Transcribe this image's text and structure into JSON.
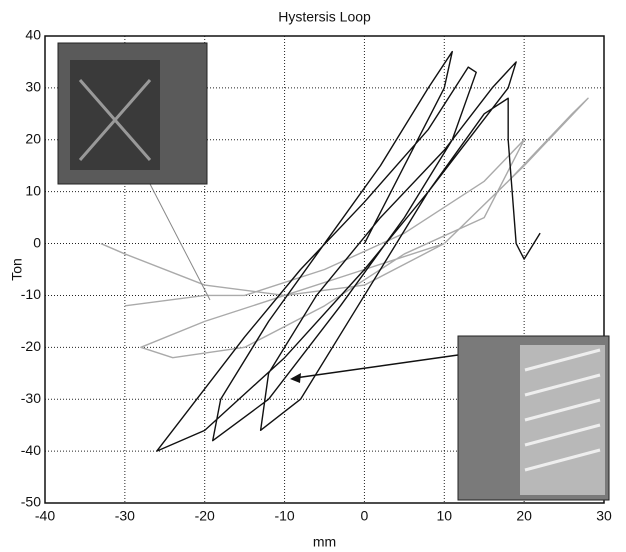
{
  "chart_data": {
    "type": "line",
    "title": "Hystersis Loop",
    "xlabel": "mm",
    "ylabel": "Ton",
    "xlim": [
      -40,
      30
    ],
    "xticks": [
      -40,
      -30,
      -20,
      -10,
      0,
      10,
      20,
      30
    ],
    "ylim": [
      -50,
      40
    ],
    "yticks": [
      -50,
      -40,
      -30,
      -20,
      -10,
      0,
      10,
      20,
      30,
      40
    ],
    "grid": true,
    "series": [
      {
        "color": "#aaaaaa",
        "x": [
          -33,
          -30,
          -20,
          -10,
          0,
          10,
          20,
          28,
          26,
          18,
          10,
          0,
          -10,
          -20,
          -28,
          -24,
          -15,
          -5,
          5,
          15,
          20,
          15,
          5,
          -5,
          -15,
          -20,
          -30
        ],
        "values": [
          0,
          -2,
          -8,
          -10,
          -8,
          0,
          15,
          28,
          25,
          12,
          0,
          -5,
          -10,
          -15,
          -20,
          -22,
          -20,
          -12,
          -2,
          5,
          20,
          12,
          2,
          -5,
          -10,
          -10,
          -12
        ]
      },
      {
        "color": "#111111",
        "x": [
          0,
          5,
          10,
          11,
          8,
          2,
          -5,
          -12,
          -18,
          -19,
          -12,
          -3,
          5,
          11,
          14,
          13,
          8,
          0,
          -8,
          -15,
          -22,
          -26,
          -20,
          -10,
          0,
          8,
          14,
          18,
          19,
          16,
          10,
          2,
          -6,
          -12,
          -13,
          -8,
          0,
          8,
          15,
          18,
          18,
          19,
          20,
          22
        ],
        "values": [
          0,
          15,
          30,
          37,
          30,
          15,
          0,
          -15,
          -30,
          -38,
          -30,
          -12,
          5,
          20,
          33,
          34,
          22,
          8,
          -5,
          -18,
          -32,
          -40,
          -36,
          -22,
          -5,
          10,
          22,
          30,
          35,
          30,
          18,
          5,
          -10,
          -25,
          -36,
          -30,
          -10,
          10,
          25,
          28,
          20,
          0,
          -3,
          2
        ]
      }
    ]
  }
}
